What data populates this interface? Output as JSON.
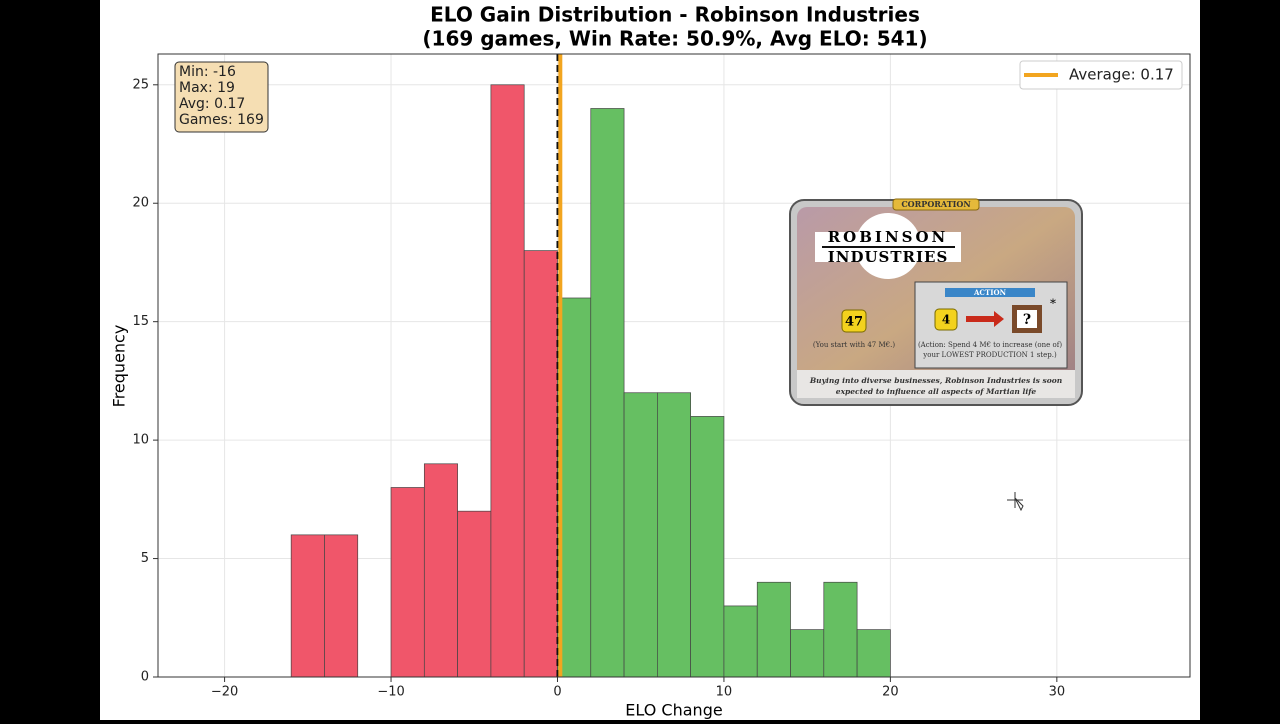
{
  "chart_data": {
    "type": "histogram",
    "title": "ELO Gain Distribution - Robinson Industries",
    "subtitle": "(169 games, Win Rate: 50.9%, Avg ELO: 541)",
    "x_label": "ELO Change",
    "y_label": "Frequency",
    "bins": [
      -16,
      -14,
      -12,
      -10,
      -8,
      -6,
      -4,
      -2,
      0,
      2,
      4,
      6,
      8,
      10,
      12,
      14,
      16,
      18,
      20
    ],
    "values": [
      6,
      6,
      0,
      8,
      9,
      7,
      25,
      18,
      16,
      24,
      12,
      12,
      11,
      3,
      4,
      2,
      4,
      2
    ],
    "colors": [
      "#f0566a",
      "#f0566a",
      "#f0566a",
      "#f0566a",
      "#f0566a",
      "#f0566a",
      "#f0566a",
      "#f0566a",
      "#66bf62",
      "#66bf62",
      "#66bf62",
      "#66bf62",
      "#66bf62",
      "#66bf62",
      "#66bf62",
      "#66bf62",
      "#66bf62",
      "#66bf62"
    ],
    "xlim": [
      -24,
      38
    ],
    "ylim": [
      0,
      26.3
    ],
    "xticks": [
      {
        "value": -20,
        "label": "−20"
      },
      {
        "value": -10,
        "label": "−10"
      },
      0,
      10,
      20,
      30
    ],
    "yticks": [
      0,
      5,
      10,
      15,
      20,
      25
    ],
    "grid": true,
    "reference_line": 0,
    "average": 0.17,
    "average_color": "#f2a51f",
    "legend_label": "Average: 0.17",
    "legend_position": "upper right",
    "stats_box": [
      "Min: -16",
      "Max: 19",
      "Avg: 0.17",
      "Games: 169"
    ]
  },
  "card": {
    "banner": "CORPORATION",
    "name_line1": "ROBINSON",
    "name_line2": "INDUSTRIES",
    "start_mc": "47",
    "start_text": "(You start with 47 M€.)",
    "action_title": "ACTION",
    "action_cost": "4",
    "action_result": "?",
    "asterisk": "*",
    "action_text1": "(Action: Spend 4 M€ to increase (one of)",
    "action_text2": "your LOWEST PRODUCTION 1 step.)",
    "flavor1": "Buying into diverse businesses, Robinson Industries is soon",
    "flavor2": "expected to influence all aspects of Martian life"
  }
}
